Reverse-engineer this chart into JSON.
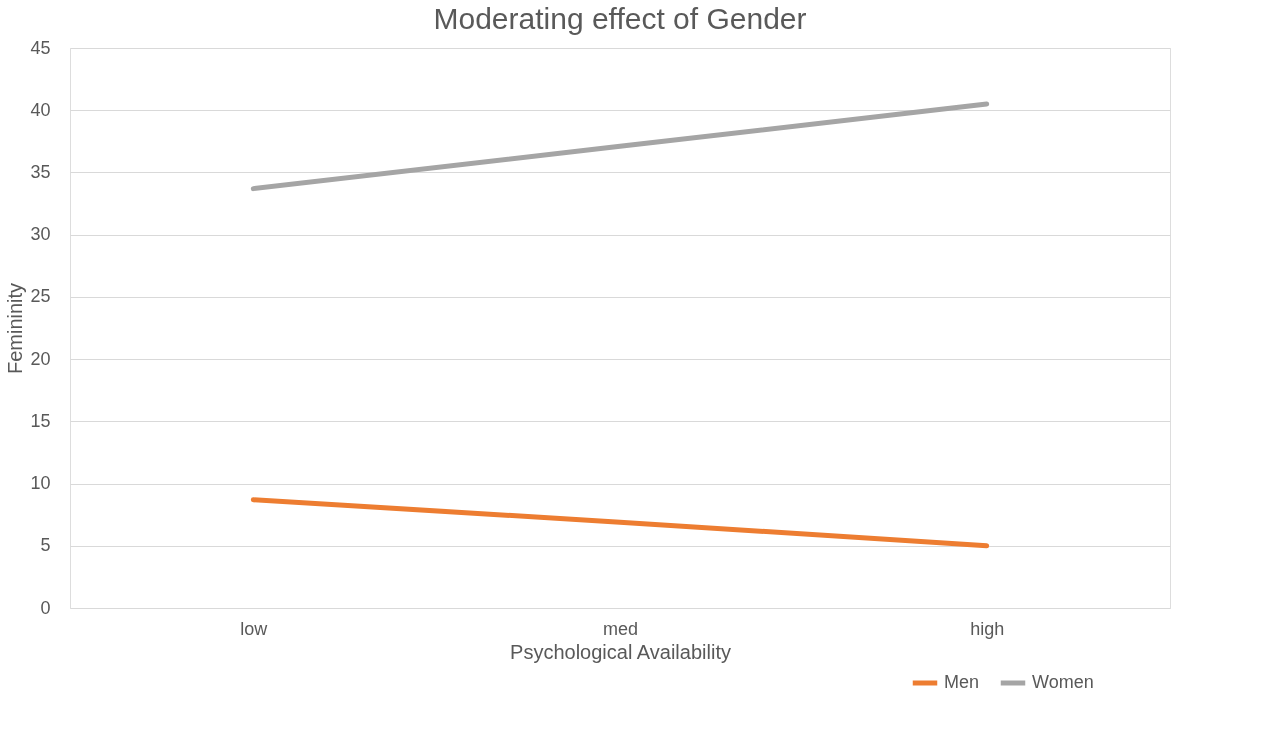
{
  "chart_data": {
    "type": "line",
    "title": "Moderating effect of Gender",
    "xlabel": "Psychological Availability",
    "ylabel": "Femininity",
    "categories": [
      "low",
      "med",
      "high"
    ],
    "series": [
      {
        "name": "Men",
        "color": "#ed7d31",
        "values": [
          8.7,
          6.9,
          5.0
        ]
      },
      {
        "name": "Women",
        "color": "#a5a5a5",
        "values": [
          33.7,
          37.1,
          40.5
        ]
      }
    ],
    "ylim": [
      0,
      45
    ],
    "yticks": [
      0,
      5,
      10,
      15,
      20,
      25,
      30,
      35,
      40,
      45
    ],
    "grid": "y",
    "legend": "bottom right",
    "marker": "none",
    "line_style": "solid"
  }
}
